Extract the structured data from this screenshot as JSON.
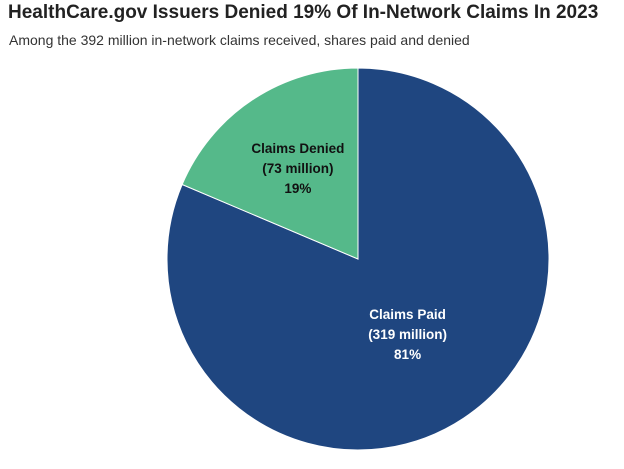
{
  "header": {
    "title": "HealthCare.gov Issuers Denied 19% Of In-Network Claims In 2023",
    "subtitle": "Among the 392 million in-network claims received, shares paid and denied"
  },
  "chart_data": {
    "type": "pie",
    "title": "HealthCare.gov Issuers Denied 19% Of In-Network Claims In 2023",
    "subtitle": "Among the 392 million in-network claims received, shares paid and denied",
    "slices": [
      {
        "name": "Claims Paid",
        "value": 319,
        "percent": 81,
        "color": "#1f4680",
        "label_lines": [
          "Claims Paid",
          "(319 million)",
          "81%"
        ],
        "label_color": "#ffffff"
      },
      {
        "name": "Claims Denied",
        "value": 73,
        "percent": 19,
        "color": "#55b98a",
        "label_lines": [
          "Claims Denied",
          "(73 million)",
          "19%"
        ],
        "label_color": "#111111"
      }
    ],
    "start_angle": "12 o'clock",
    "direction": "clockwise",
    "legend": "none"
  }
}
